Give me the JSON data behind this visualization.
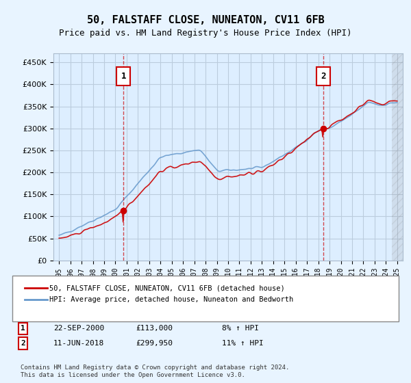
{
  "title": "50, FALSTAFF CLOSE, NUNEATON, CV11 6FB",
  "subtitle": "Price paid vs. HM Land Registry's House Price Index (HPI)",
  "footer": "Contains HM Land Registry data © Crown copyright and database right 2024.\nThis data is licensed under the Open Government Licence v3.0.",
  "legend_line1": "50, FALSTAFF CLOSE, NUNEATON, CV11 6FB (detached house)",
  "legend_line2": "HPI: Average price, detached house, Nuneaton and Bedworth",
  "annotation1_label": "1",
  "annotation1_date": "22-SEP-2000",
  "annotation1_price": "£113,000",
  "annotation1_hpi": "8% ↑ HPI",
  "annotation2_label": "2",
  "annotation2_date": "11-JUN-2018",
  "annotation2_price": "£299,950",
  "annotation2_hpi": "11% ↑ HPI",
  "sale1_x": 2000.72,
  "sale1_y": 113000,
  "sale2_x": 2018.44,
  "sale2_y": 299950,
  "hpi_color": "#6699cc",
  "price_color": "#cc0000",
  "background_color": "#ddeeff",
  "plot_bg_color": "#e8f0ff",
  "grid_color": "#cccccc",
  "annotation_box_color": "#cc0000",
  "ylim_min": 0,
  "ylim_max": 470000,
  "xlim_min": 1994.5,
  "xlim_max": 2025.5,
  "yticks": [
    0,
    50000,
    100000,
    150000,
    200000,
    250000,
    300000,
    350000,
    400000,
    450000
  ],
  "xticks": [
    1995,
    1996,
    1997,
    1998,
    1999,
    2000,
    2001,
    2002,
    2003,
    2004,
    2005,
    2006,
    2007,
    2008,
    2009,
    2010,
    2011,
    2012,
    2013,
    2014,
    2015,
    2016,
    2017,
    2018,
    2019,
    2020,
    2021,
    2022,
    2023,
    2024,
    2025
  ]
}
